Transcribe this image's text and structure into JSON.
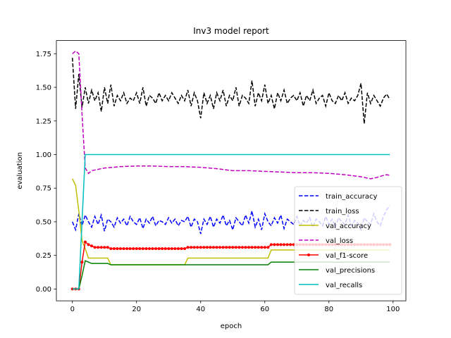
{
  "chart_data": {
    "type": "line",
    "title": "Inv3 model report",
    "xlabel": "epoch",
    "ylabel": "evaluation",
    "xlim": [
      -5,
      104
    ],
    "ylim": [
      -0.088,
      1.848
    ],
    "xticks": [
      0,
      20,
      40,
      60,
      80,
      100
    ],
    "yticks": [
      0.0,
      0.25,
      0.5,
      0.75,
      1.0,
      1.25,
      1.5,
      1.75
    ],
    "xtick_labels": [
      "0",
      "20",
      "40",
      "60",
      "80",
      "100"
    ],
    "ytick_labels": [
      "0.00",
      "0.25",
      "0.50",
      "0.75",
      "1.00",
      "1.25",
      "1.50",
      "1.75"
    ],
    "grid": false,
    "legend_position": "lower right",
    "series": [
      {
        "name": "train_accuracy",
        "color": "#0000ff",
        "style": "dashed",
        "x": [
          0,
          1,
          2,
          3,
          4,
          5,
          6,
          7,
          8,
          9,
          10,
          11,
          12,
          13,
          14,
          15,
          16,
          17,
          18,
          19,
          20,
          21,
          22,
          23,
          24,
          25,
          26,
          27,
          28,
          29,
          30,
          31,
          32,
          33,
          34,
          35,
          36,
          37,
          38,
          39,
          40,
          41,
          42,
          43,
          44,
          45,
          46,
          47,
          48,
          49,
          50,
          51,
          52,
          53,
          54,
          55,
          56,
          57,
          58,
          59,
          60,
          61,
          62,
          63,
          64,
          65,
          66,
          67,
          68,
          69,
          70,
          71,
          72,
          73,
          74,
          75,
          76,
          77,
          78,
          79,
          80,
          81,
          82,
          83,
          84,
          85,
          86,
          87,
          88,
          89,
          90,
          91,
          92,
          93,
          94,
          95,
          96,
          97,
          98,
          99
        ],
        "y": [
          0.5,
          0.44,
          0.56,
          0.47,
          0.55,
          0.5,
          0.46,
          0.54,
          0.48,
          0.55,
          0.43,
          0.52,
          0.5,
          0.46,
          0.53,
          0.49,
          0.52,
          0.47,
          0.54,
          0.5,
          0.48,
          0.53,
          0.45,
          0.52,
          0.49,
          0.54,
          0.47,
          0.51,
          0.5,
          0.48,
          0.53,
          0.49,
          0.52,
          0.47,
          0.51,
          0.5,
          0.54,
          0.46,
          0.52,
          0.5,
          0.41,
          0.52,
          0.48,
          0.54,
          0.46,
          0.52,
          0.49,
          0.55,
          0.47,
          0.51,
          0.44,
          0.53,
          0.5,
          0.47,
          0.55,
          0.49,
          0.58,
          0.46,
          0.52,
          0.44,
          0.56,
          0.5,
          0.47,
          0.53,
          0.49,
          0.55,
          0.45,
          0.52,
          0.5,
          0.48,
          0.54,
          0.47,
          0.51,
          0.49,
          0.53,
          0.46,
          0.52,
          0.5,
          0.47,
          0.54,
          0.48,
          0.52,
          0.46,
          0.53,
          0.5,
          0.48,
          0.55,
          0.47,
          0.51,
          0.49,
          0.44,
          0.53,
          0.5,
          0.48,
          0.56,
          0.5,
          0.47,
          0.54,
          0.59,
          0.62
        ]
      },
      {
        "name": "train_loss",
        "color": "#000000",
        "style": "dashed",
        "x": [
          0,
          1,
          2,
          3,
          4,
          5,
          6,
          7,
          8,
          9,
          10,
          11,
          12,
          13,
          14,
          15,
          16,
          17,
          18,
          19,
          20,
          21,
          22,
          23,
          24,
          25,
          26,
          27,
          28,
          29,
          30,
          31,
          32,
          33,
          34,
          35,
          36,
          37,
          38,
          39,
          40,
          41,
          42,
          43,
          44,
          45,
          46,
          47,
          48,
          49,
          50,
          51,
          52,
          53,
          54,
          55,
          56,
          57,
          58,
          59,
          60,
          61,
          62,
          63,
          64,
          65,
          66,
          67,
          68,
          69,
          70,
          71,
          72,
          73,
          74,
          75,
          76,
          77,
          78,
          79,
          80,
          81,
          82,
          83,
          84,
          85,
          86,
          87,
          88,
          89,
          90,
          91,
          92,
          93,
          94,
          95,
          96,
          97,
          98,
          99
        ],
        "y": [
          1.72,
          1.34,
          1.6,
          1.35,
          1.5,
          1.38,
          1.48,
          1.4,
          1.46,
          1.32,
          1.5,
          1.38,
          1.52,
          1.36,
          1.44,
          1.4,
          1.46,
          1.38,
          1.42,
          1.4,
          1.46,
          1.38,
          1.5,
          1.36,
          1.44,
          1.42,
          1.38,
          1.46,
          1.4,
          1.44,
          1.4,
          1.46,
          1.42,
          1.38,
          1.44,
          1.4,
          1.48,
          1.36,
          1.46,
          1.4,
          1.27,
          1.46,
          1.38,
          1.44,
          1.34,
          1.46,
          1.4,
          1.48,
          1.36,
          1.44,
          1.4,
          1.5,
          1.36,
          1.44,
          1.42,
          1.38,
          1.55,
          1.36,
          1.46,
          1.4,
          1.52,
          1.38,
          1.44,
          1.34,
          1.46,
          1.4,
          1.48,
          1.38,
          1.42,
          1.44,
          1.4,
          1.46,
          1.36,
          1.44,
          1.4,
          1.48,
          1.38,
          1.42,
          1.44,
          1.36,
          1.46,
          1.4,
          1.38,
          1.44,
          1.4,
          1.46,
          1.38,
          1.42,
          1.4,
          1.44,
          1.53,
          1.23,
          1.46,
          1.38,
          1.44,
          1.4,
          1.36,
          1.42,
          1.45,
          1.41
        ]
      },
      {
        "name": "val_accuracy",
        "color": "#bfbf00",
        "style": "solid",
        "x": [
          0,
          1,
          2,
          3,
          4,
          5,
          6,
          7,
          8,
          9,
          10,
          11,
          12,
          35,
          36,
          61,
          62,
          99
        ],
        "y": [
          0.82,
          0.77,
          0.58,
          0.36,
          0.3,
          0.23,
          0.23,
          0.23,
          0.23,
          0.23,
          0.23,
          0.23,
          0.18,
          0.18,
          0.23,
          0.23,
          0.29,
          0.29
        ]
      },
      {
        "name": "val_loss",
        "color": "#bf00bf",
        "style": "dashed",
        "x": [
          0,
          1,
          2,
          3,
          4,
          5,
          6,
          8,
          10,
          15,
          20,
          25,
          30,
          35,
          40,
          45,
          50,
          55,
          60,
          65,
          70,
          75,
          80,
          85,
          90,
          93,
          95,
          97,
          98,
          99
        ],
        "y": [
          1.75,
          1.77,
          1.75,
          1.3,
          0.9,
          0.86,
          0.88,
          0.89,
          0.9,
          0.91,
          0.915,
          0.915,
          0.91,
          0.91,
          0.905,
          0.895,
          0.88,
          0.88,
          0.875,
          0.87,
          0.865,
          0.865,
          0.86,
          0.85,
          0.835,
          0.82,
          0.83,
          0.845,
          0.85,
          0.845
        ]
      },
      {
        "name": "val_f1-score",
        "color": "#ff0000",
        "style": "solid-marker",
        "x": [
          0,
          1,
          2,
          3,
          4,
          5,
          6,
          7,
          8,
          9,
          10,
          11,
          12,
          13,
          14,
          15,
          16,
          17,
          18,
          19,
          20,
          21,
          22,
          23,
          24,
          25,
          26,
          27,
          28,
          29,
          30,
          31,
          32,
          33,
          34,
          35,
          36,
          37,
          38,
          39,
          40,
          41,
          42,
          43,
          44,
          45,
          46,
          47,
          48,
          49,
          50,
          51,
          52,
          53,
          54,
          55,
          56,
          57,
          58,
          59,
          60,
          61,
          62,
          63,
          64,
          65,
          66,
          67,
          68,
          69,
          70,
          71,
          72,
          73,
          74,
          75,
          76,
          77,
          78,
          79,
          80,
          81,
          82,
          83,
          84,
          85,
          86,
          87,
          88,
          89,
          90,
          91,
          92,
          93,
          94,
          95,
          96,
          97,
          98,
          99
        ],
        "y": [
          0.0,
          0.0,
          0.0,
          0.2,
          0.35,
          0.33,
          0.32,
          0.31,
          0.31,
          0.31,
          0.31,
          0.31,
          0.3,
          0.3,
          0.3,
          0.3,
          0.3,
          0.3,
          0.3,
          0.3,
          0.3,
          0.3,
          0.3,
          0.3,
          0.3,
          0.3,
          0.3,
          0.3,
          0.3,
          0.3,
          0.3,
          0.3,
          0.3,
          0.3,
          0.3,
          0.3,
          0.31,
          0.31,
          0.31,
          0.31,
          0.31,
          0.31,
          0.31,
          0.31,
          0.31,
          0.31,
          0.31,
          0.31,
          0.31,
          0.31,
          0.31,
          0.31,
          0.31,
          0.31,
          0.31,
          0.31,
          0.31,
          0.31,
          0.31,
          0.31,
          0.31,
          0.31,
          0.33,
          0.33,
          0.33,
          0.33,
          0.33,
          0.33,
          0.33,
          0.33,
          0.33,
          0.33,
          0.33,
          0.33,
          0.33,
          0.33,
          0.33,
          0.33,
          0.33,
          0.33,
          0.33,
          0.33,
          0.33,
          0.33,
          0.33,
          0.33,
          0.33,
          0.33,
          0.33,
          0.33,
          0.33,
          0.33,
          0.33,
          0.33,
          0.33,
          0.33,
          0.33,
          0.33,
          0.33,
          0.33
        ]
      },
      {
        "name": "val_precisions",
        "color": "#008000",
        "style": "solid",
        "x": [
          0,
          1,
          2,
          3,
          4,
          5,
          6,
          7,
          8,
          9,
          10,
          11,
          12,
          35,
          36,
          61,
          62,
          99
        ],
        "y": [
          0.0,
          0.0,
          0.0,
          0.1,
          0.21,
          0.2,
          0.19,
          0.19,
          0.19,
          0.19,
          0.19,
          0.19,
          0.18,
          0.18,
          0.18,
          0.18,
          0.2,
          0.2
        ]
      },
      {
        "name": "val_recalls",
        "color": "#00bfbf",
        "style": "solid",
        "x": [
          0,
          1,
          2,
          3,
          4,
          5,
          99
        ],
        "y": [
          0.0,
          0.0,
          0.0,
          0.5,
          1.0,
          1.0,
          1.0
        ]
      }
    ]
  }
}
